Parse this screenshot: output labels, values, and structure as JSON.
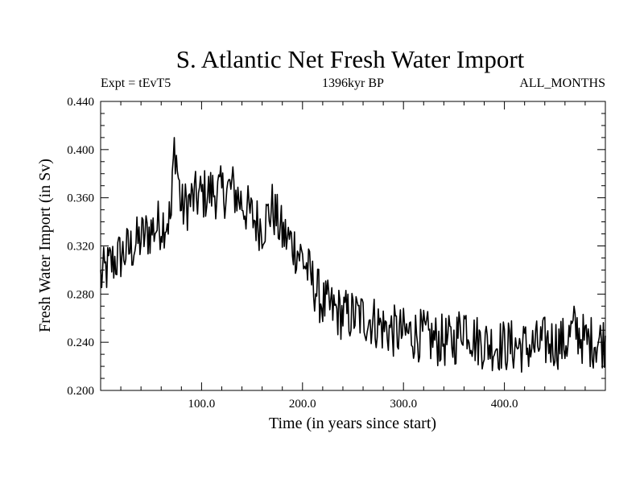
{
  "chart_data": {
    "type": "line",
    "title": "S. Atlantic Net Fresh Water Import",
    "subtitle_left": "Expt = tEvT5",
    "subtitle_center": "1396kyr BP",
    "subtitle_right": "ALL_MONTHS",
    "xlabel": "Time (in years since start)",
    "ylabel": "Fresh Water Import (in Sv)",
    "xlim": [
      0,
      500
    ],
    "ylim": [
      0.2,
      0.44
    ],
    "x_ticks": [
      100,
      200,
      300,
      400
    ],
    "x_tick_labels": [
      "100.0",
      "200.0",
      "300.0",
      "400.0"
    ],
    "y_ticks": [
      0.2,
      0.24,
      0.28,
      0.32,
      0.36,
      0.4,
      0.44
    ],
    "y_tick_labels": [
      "0.200",
      "0.240",
      "0.280",
      "0.320",
      "0.360",
      "0.400",
      "0.440"
    ],
    "grid": false,
    "series": [
      {
        "name": "Net Fresh Water Import",
        "x": [
          0,
          10,
          20,
          30,
          40,
          50,
          60,
          70,
          73,
          80,
          90,
          100,
          110,
          120,
          130,
          140,
          150,
          160,
          170,
          180,
          190,
          200,
          210,
          220,
          230,
          240,
          250,
          260,
          270,
          280,
          290,
          300,
          310,
          320,
          330,
          340,
          350,
          360,
          370,
          380,
          390,
          400,
          410,
          420,
          430,
          440,
          450,
          460,
          470,
          480,
          490,
          500
        ],
        "values": [
          0.293,
          0.305,
          0.312,
          0.318,
          0.326,
          0.333,
          0.339,
          0.344,
          0.41,
          0.35,
          0.358,
          0.362,
          0.365,
          0.364,
          0.368,
          0.356,
          0.344,
          0.336,
          0.352,
          0.33,
          0.322,
          0.31,
          0.29,
          0.272,
          0.267,
          0.263,
          0.262,
          0.261,
          0.258,
          0.252,
          0.249,
          0.247,
          0.247,
          0.245,
          0.242,
          0.241,
          0.24,
          0.258,
          0.243,
          0.239,
          0.238,
          0.237,
          0.237,
          0.236,
          0.236,
          0.24,
          0.24,
          0.239,
          0.252,
          0.24,
          0.241,
          0.241
        ]
      }
    ]
  }
}
